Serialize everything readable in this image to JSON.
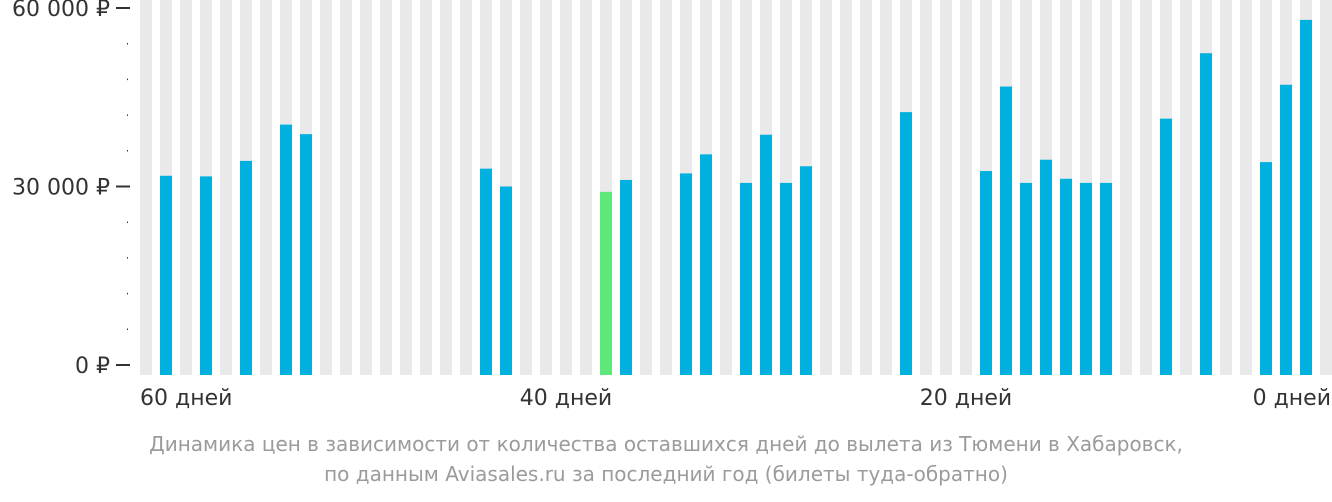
{
  "chart_data": {
    "type": "bar",
    "x_axis": "days_before_departure",
    "ylim": [
      0,
      60000
    ],
    "ticks": [
      {
        "value": 60000,
        "label": "60 000 ₽"
      },
      {
        "value": 30000,
        "label": "30 000 ₽"
      },
      {
        "value": 0,
        "label": "0 ₽"
      }
    ],
    "minor_tick_step": 6000,
    "x_labels": [
      {
        "day": 60,
        "label": "60 дней"
      },
      {
        "day": 40,
        "label": "40 дней"
      },
      {
        "day": 20,
        "label": "20 дней"
      },
      {
        "day": 0,
        "label": "0 дней"
      }
    ],
    "days": [
      60,
      59,
      58,
      57,
      56,
      55,
      54,
      53,
      52,
      51,
      50,
      49,
      48,
      47,
      46,
      45,
      44,
      43,
      42,
      41,
      40,
      39,
      38,
      37,
      36,
      35,
      34,
      33,
      32,
      31,
      30,
      29,
      28,
      27,
      26,
      25,
      24,
      23,
      22,
      21,
      20,
      19,
      18,
      17,
      16,
      15,
      14,
      13,
      12,
      11,
      10,
      9,
      8,
      7,
      6,
      5,
      4,
      3,
      2,
      1,
      0
    ],
    "values": [
      31800,
      null,
      31700,
      null,
      34300,
      null,
      40400,
      38800,
      null,
      null,
      null,
      null,
      null,
      null,
      null,
      null,
      33000,
      30000,
      null,
      null,
      null,
      null,
      29100,
      31100,
      null,
      null,
      32200,
      35400,
      null,
      30600,
      38700,
      30600,
      33400,
      null,
      null,
      null,
      null,
      42500,
      null,
      null,
      null,
      32600,
      46800,
      30600,
      34500,
      31300,
      30600,
      30600,
      null,
      null,
      41400,
      null,
      52400,
      null,
      null,
      34100,
      47100,
      58000,
      null,
      null,
      null
    ],
    "highlight_day": 38,
    "colors": {
      "bar": "#00b0de",
      "highlight": "#5fe87a",
      "background_slot": "#e9e9e9",
      "axis_text": "#333333",
      "caption_text": "#9b9b9b"
    }
  },
  "caption": {
    "line1": "Динамика цен в зависимости от количества оставшихся дней до вылета из Тюмени в Хабаровск,",
    "line2": "по данным Aviasales.ru за последний год (билеты туда-обратно)"
  }
}
